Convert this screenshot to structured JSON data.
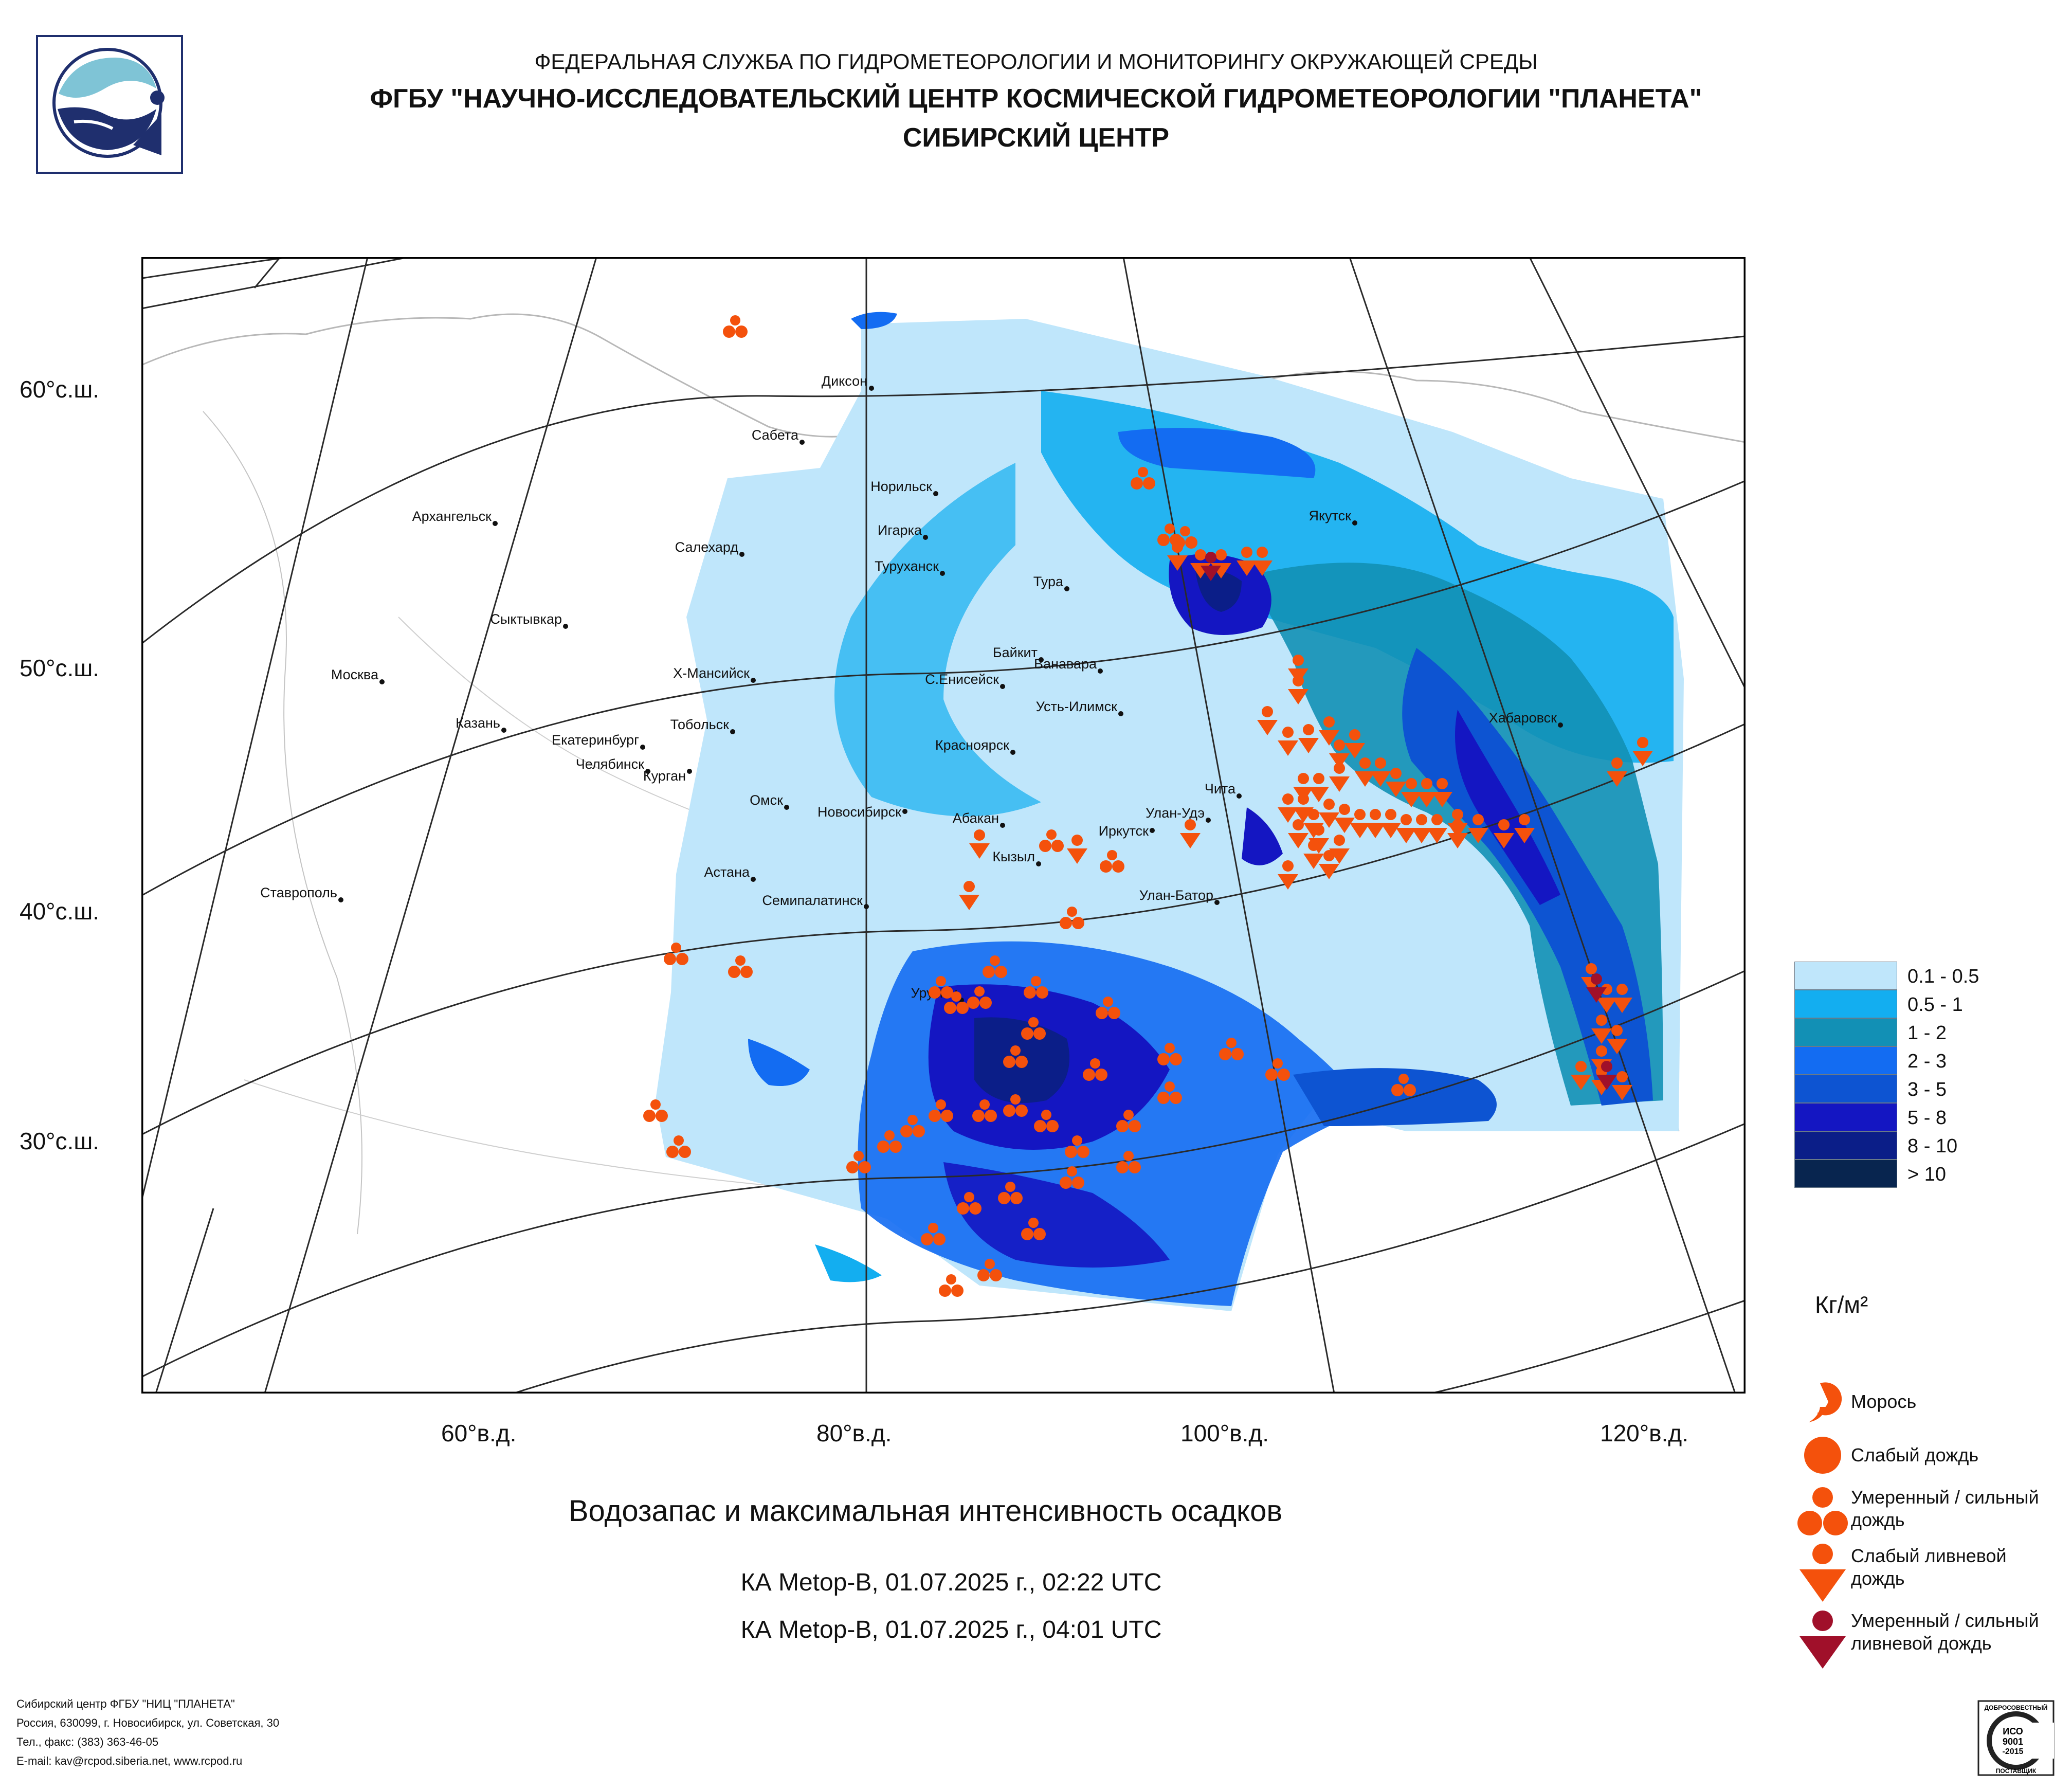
{
  "header": {
    "agency": "ФЕДЕРАЛЬНАЯ СЛУЖБА ПО ГИДРОМЕТЕОРОЛОГИИ И МОНИТОРИНГУ ОКРУЖАЮЩЕЙ СРЕДЫ",
    "org": "ФГБУ \"НАУЧНО-ИССЛЕДОВАТЕЛЬСКИЙ ЦЕНТР КОСМИЧЕСКОЙ ГИДРОМЕТЕОРОЛОГИИ \"ПЛАНЕТА\"",
    "center": "СИБИРСКИЙ ЦЕНТР"
  },
  "map": {
    "lat_labels": [
      "60°с.ш.",
      "50°с.ш.",
      "40°с.ш.",
      "30°с.ш."
    ],
    "lon_labels": [
      "60°в.д.",
      "80°в.д.",
      "100°в.д.",
      "120°в.д."
    ],
    "cities": [
      "Диксон",
      "Сабета",
      "Норильск",
      "Игарка",
      "Салехард",
      "Туруханск",
      "Архангельск",
      "Якутск",
      "Тура",
      "Сыктывкар",
      "Байкит",
      "Ванавара",
      "Х-Мансийск",
      "С.Енисейск",
      "Москва",
      "Усть-Илимск",
      "Хабаровск",
      "Казань",
      "Тобольск",
      "Екатеринбург",
      "Красноярск",
      "Челябинск",
      "Курган",
      "Чита",
      "Омск",
      "Новосибирск",
      "Улан-Удэ",
      "Абакан",
      "Иркутск",
      "Кызыл",
      "Астана",
      "Ставрополь",
      "Улан-Батор",
      "Семипалатинск",
      "Урумчи"
    ]
  },
  "titles": {
    "main": "Водозапас и максимальная интенсивность осадков",
    "pass1": "КА Metop-B, 01.07.2025 г., 02:22 UTC",
    "pass2": "КА Metop-B, 01.07.2025 г., 04:01 UTC"
  },
  "legend": {
    "classes": [
      {
        "label": "0.1 - 0.5",
        "color": "#bfe6fb"
      },
      {
        "label": "0.5 - 1",
        "color": "#13aef0"
      },
      {
        "label": "1 - 2",
        "color": "#1290b5"
      },
      {
        "label": "2 - 3",
        "color": "#136cf2"
      },
      {
        "label": "3 - 5",
        "color": "#0d54d2"
      },
      {
        "label": "5 - 8",
        "color": "#1416c2"
      },
      {
        "label": "8 - 10",
        "color": "#0b1e88"
      },
      {
        "label": "> 10",
        "color": "#08254f"
      }
    ],
    "unit": "Кг/м²",
    "symbols": [
      {
        "label1": "Морось",
        "label2": "",
        "icon": "drizzle-icon"
      },
      {
        "label1": "Слабый дождь",
        "label2": "",
        "icon": "light-rain-icon"
      },
      {
        "label1": "Умеренный / сильный",
        "label2": "дождь",
        "icon": "moderate-rain-icon"
      },
      {
        "label1": "Слабый ливневой",
        "label2": "дождь",
        "icon": "light-shower-icon"
      },
      {
        "label1": "Умеренный / сильный",
        "label2": "ливневой дождь",
        "icon": "heavy-shower-icon"
      }
    ]
  },
  "footer": {
    "line1": "Сибирский центр ФГБУ \"НИЦ \"ПЛАНЕТА\"",
    "line2": "Россия, 630099, г. Новосибирск, ул. Советская, 30",
    "line3": "Тел., факс: (383) 363-46-05",
    "line4": "E-mail: kav@rcpod.siberia.net, www.rcpod.ru"
  },
  "iso_badge": {
    "top": "ДОБРОСОВЕСТНЫЙ",
    "line1": "ИСО",
    "line2": "9001",
    "line3": "-2015",
    "bottom": "ПОСТАВЩИК"
  },
  "colors": {
    "symbol_orange": "#f4510c",
    "symbol_darkred": "#a0102a",
    "logo_navy": "#1f2f6e",
    "logo_teal": "#7fc4d6"
  }
}
